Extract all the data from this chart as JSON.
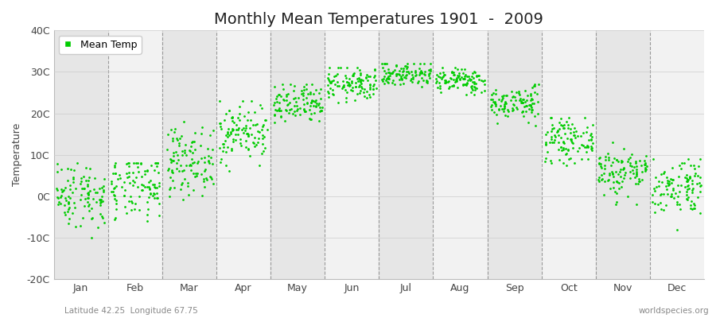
{
  "title": "Monthly Mean Temperatures 1901  -  2009",
  "ylabel": "Temperature",
  "xlabel_bottom_left": "Latitude 42.25  Longitude 67.75",
  "xlabel_bottom_right": "worldspecies.org",
  "legend_label": "Mean Temp",
  "dot_color": "#00cc00",
  "background_color": "#ffffff",
  "plot_bg_light": "#f2f2f2",
  "plot_bg_dark": "#e6e6e6",
  "ylim": [
    -20,
    40
  ],
  "yticks": [
    -20,
    -10,
    0,
    10,
    20,
    30,
    40
  ],
  "ytick_labels": [
    "-20C",
    "-10C",
    "0C",
    "10C",
    "20C",
    "30C",
    "40C"
  ],
  "months": [
    "Jan",
    "Feb",
    "Mar",
    "Apr",
    "May",
    "Jun",
    "Jul",
    "Aug",
    "Sep",
    "Oct",
    "Nov",
    "Dec"
  ],
  "month_means": [
    0.5,
    2.0,
    8.5,
    15.5,
    22.0,
    27.0,
    29.5,
    28.0,
    22.5,
    13.5,
    6.0,
    2.5
  ],
  "month_stds": [
    4.0,
    4.0,
    4.0,
    3.5,
    2.5,
    2.0,
    1.5,
    1.5,
    2.0,
    2.5,
    3.0,
    3.5
  ],
  "month_mins": [
    -13,
    -12,
    -3,
    6,
    15,
    21,
    25,
    24,
    17,
    7,
    -2,
    -8
  ],
  "month_maxs": [
    8,
    8,
    18,
    23,
    27,
    31,
    32,
    31,
    27,
    19,
    13,
    9
  ],
  "n_years": 109,
  "seed": 42,
  "figsize": [
    9.0,
    4.0
  ],
  "dpi": 100,
  "title_fontsize": 14,
  "axis_fontsize": 9,
  "tick_fontsize": 9,
  "legend_fontsize": 9,
  "dot_size": 4,
  "dot_alpha": 1.0,
  "grid_color": "#aaaaaa",
  "dash_color": "#999999"
}
